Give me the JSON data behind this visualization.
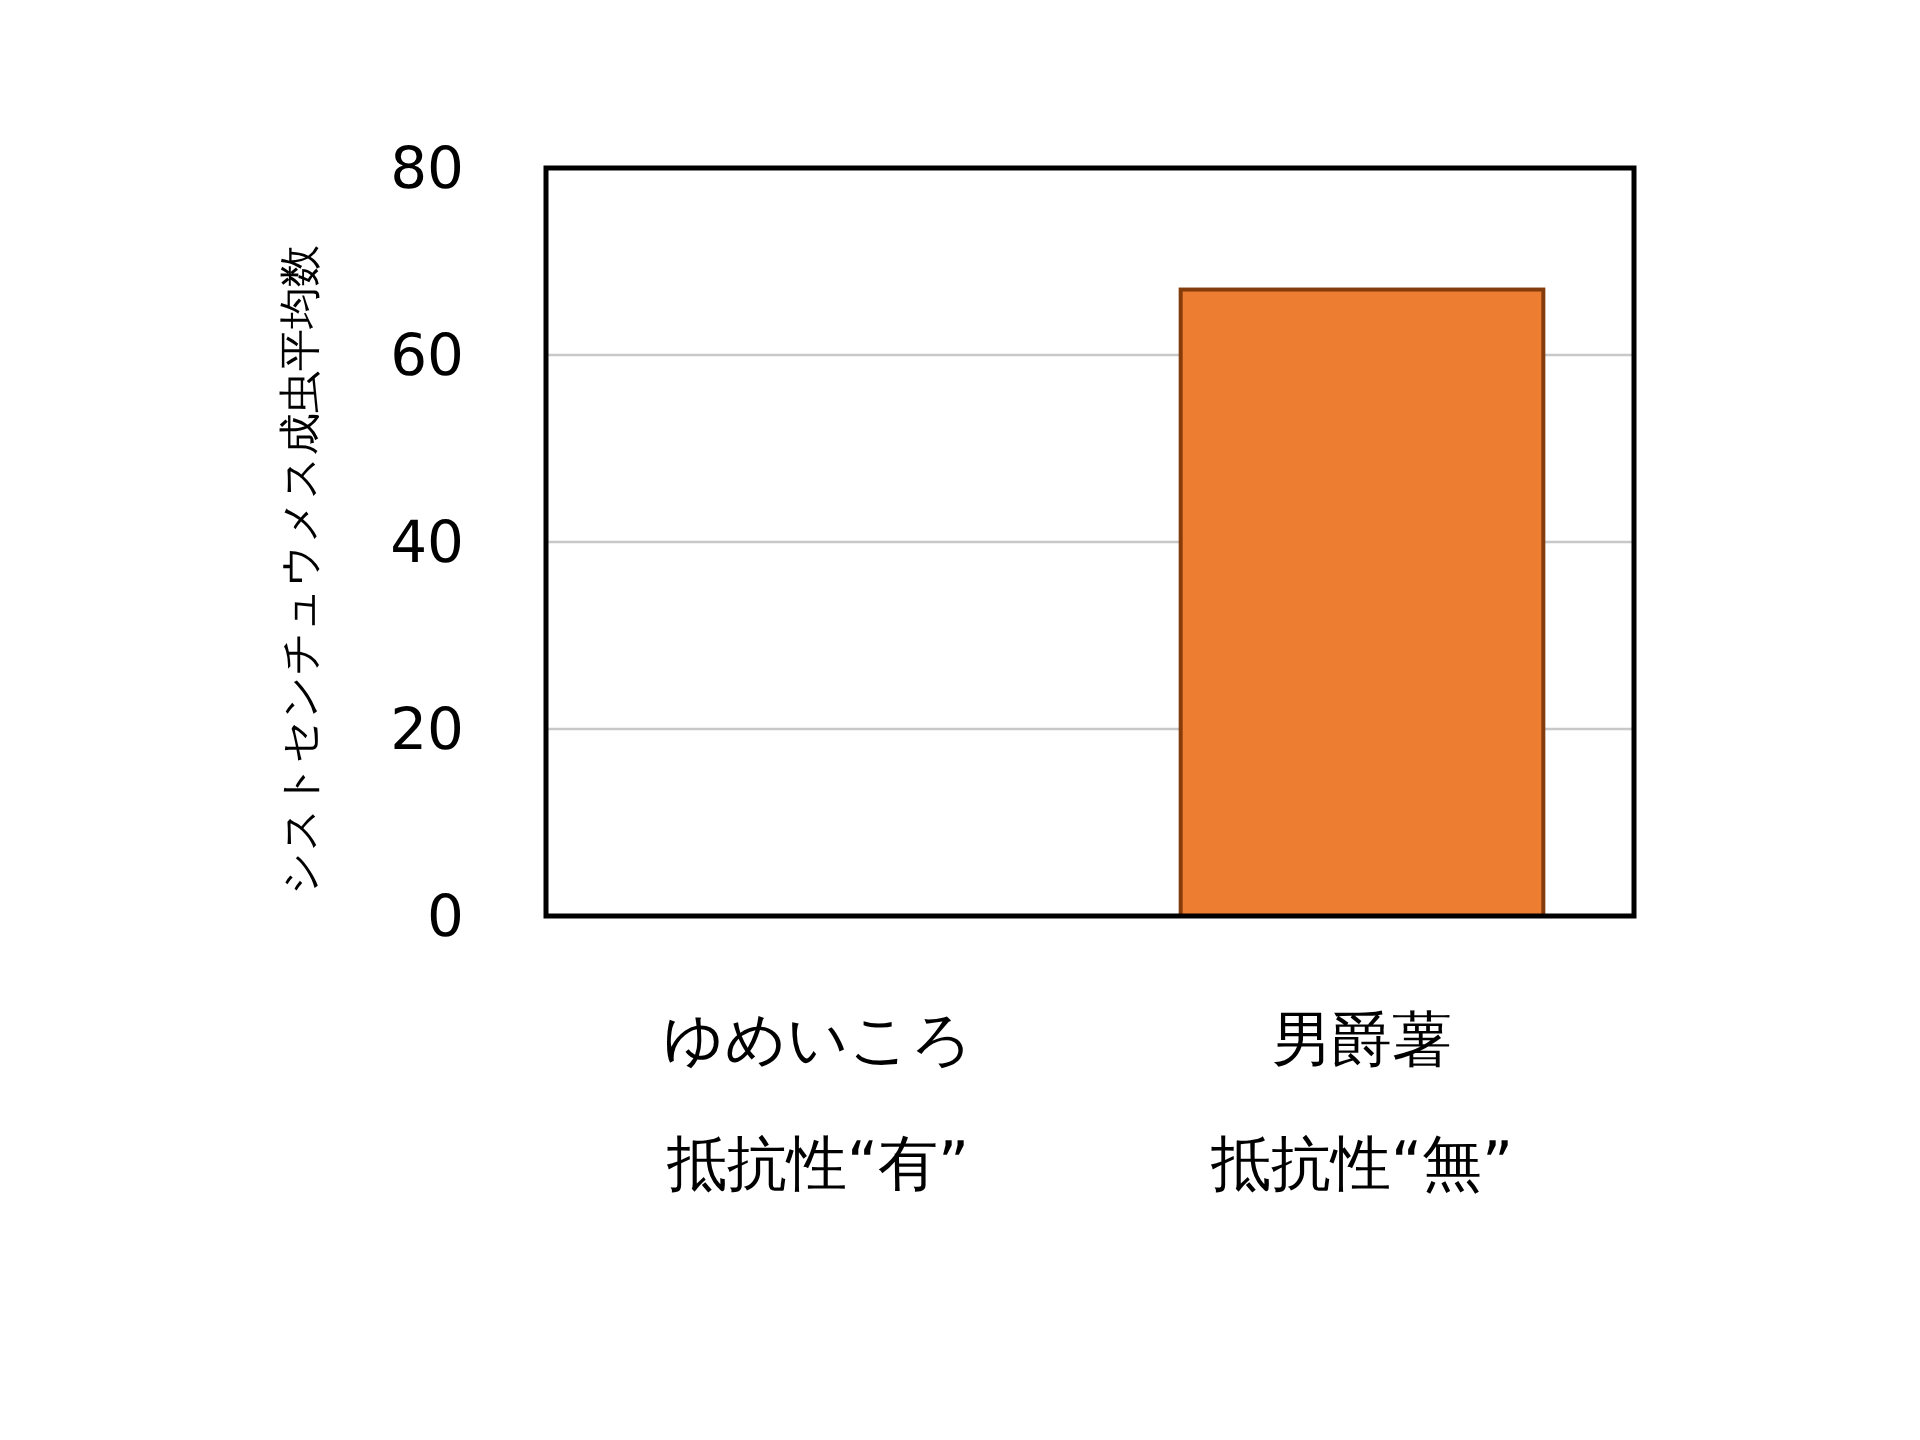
{
  "chart_data": {
    "type": "bar",
    "ylabel": "シストセンチュウメス成虫平均数",
    "categories": [
      "ゆめいころ",
      "男爵薯"
    ],
    "annotations": [
      "抵抗性“有”",
      "抵抗性“無”"
    ],
    "values": [
      0,
      67
    ],
    "color": "#ed7d31",
    "ylim": [
      0,
      80
    ],
    "yticks": [
      0,
      20,
      40,
      60,
      80
    ],
    "grid": "y"
  }
}
